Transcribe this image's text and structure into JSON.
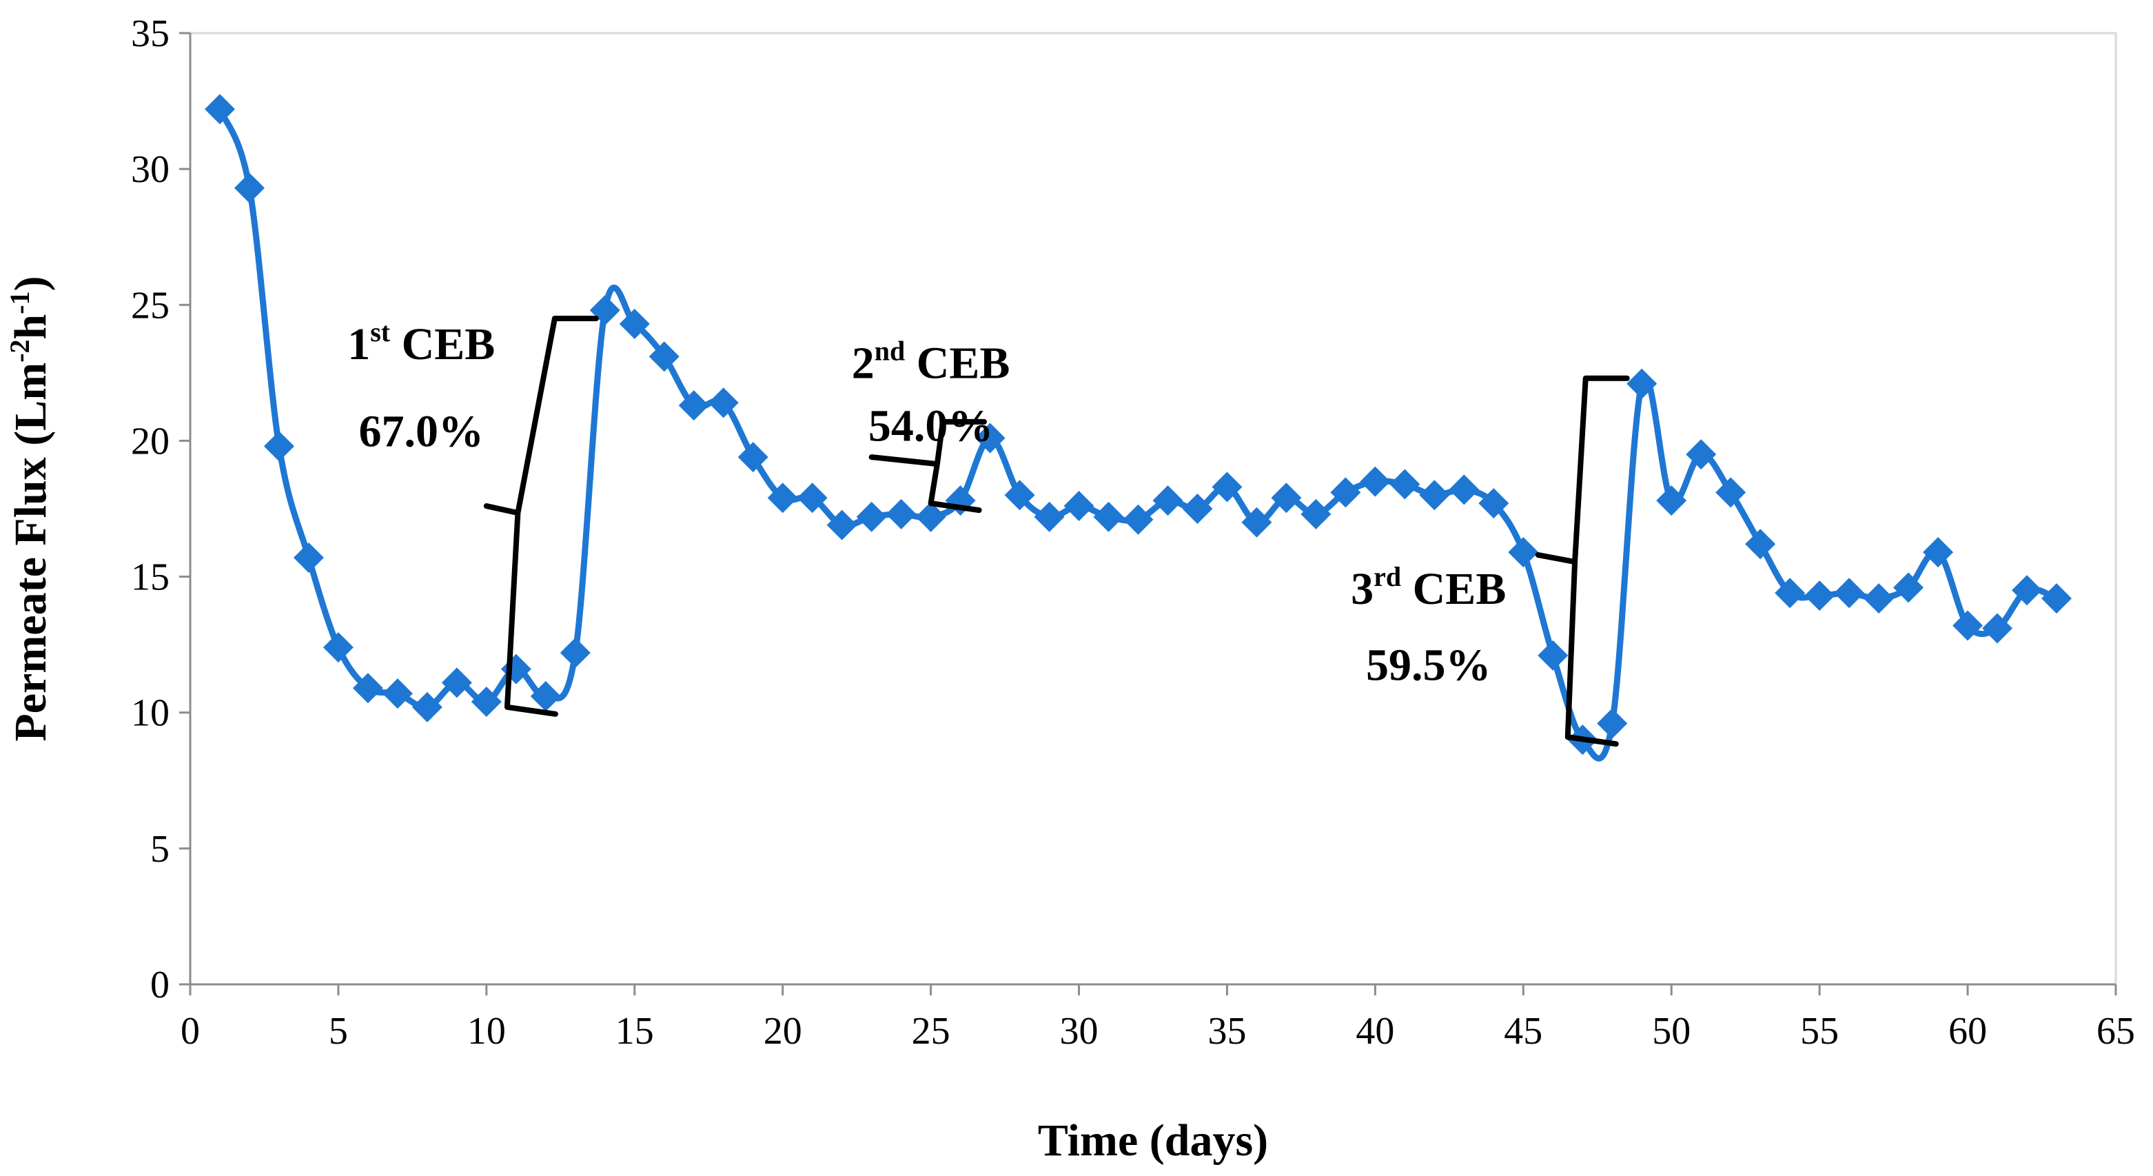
{
  "chart_data": {
    "type": "line",
    "xlabel": "Time (days)",
    "ylabel_parts": [
      "Permeate Flux (Lm",
      "-2",
      "h",
      "-1",
      ")"
    ],
    "xlim": [
      0,
      65
    ],
    "ylim": [
      0,
      35
    ],
    "xticks": [
      0,
      5,
      10,
      15,
      20,
      25,
      30,
      35,
      40,
      45,
      50,
      55,
      60,
      65
    ],
    "yticks": [
      0,
      5,
      10,
      15,
      20,
      25,
      30,
      35
    ],
    "grid": false,
    "line_color": "#1f77d4",
    "marker": "diamond",
    "smooth": true,
    "series": [
      {
        "x": [
          1,
          2,
          3,
          4,
          5,
          6,
          7,
          8,
          9,
          10,
          11,
          12,
          13,
          14,
          15,
          16,
          17,
          18,
          19,
          20,
          21,
          22,
          23,
          24,
          25,
          26,
          27,
          28,
          29,
          30,
          31,
          32,
          33,
          34,
          35,
          36,
          37,
          38,
          39,
          40,
          41,
          42,
          43,
          44,
          45,
          46,
          47,
          48,
          49,
          50,
          51,
          52,
          53,
          54,
          55,
          56,
          57,
          58,
          59,
          60,
          61,
          62,
          63
        ],
        "y": [
          32.2,
          29.3,
          19.8,
          15.7,
          12.4,
          10.9,
          10.7,
          10.2,
          11.1,
          10.4,
          11.6,
          10.6,
          12.2,
          24.8,
          24.3,
          23.1,
          21.3,
          21.4,
          19.4,
          17.9,
          17.9,
          16.9,
          17.2,
          17.3,
          17.2,
          17.8,
          20.1,
          18.0,
          17.2,
          17.6,
          17.2,
          17.1,
          17.8,
          17.5,
          18.3,
          17.0,
          17.9,
          17.3,
          18.1,
          18.5,
          18.4,
          18.0,
          18.2,
          17.7,
          15.9,
          12.1,
          9.0,
          9.6,
          22.1,
          17.8,
          19.5,
          18.1,
          16.2,
          14.4,
          14.3,
          14.4,
          14.2,
          14.6,
          15.9,
          13.2,
          13.1,
          14.5,
          14.2
        ]
      }
    ],
    "annotations": [
      {
        "label": "CEB",
        "ord_num": "1",
        "ord_suffix": "st",
        "value": "67.0%",
        "text_x": 7.8,
        "text_y_top": 23.0,
        "text_y_bottom": 19.8,
        "bracket": {
          "x_start": 10.7,
          "x_end": 13.7,
          "y_bottom": 10.2,
          "y_top": 24.5,
          "tip_x": 10.0,
          "tip_y": 17.6
        }
      },
      {
        "label": "CEB",
        "ord_num": "2",
        "ord_suffix": "nd",
        "value": "54.0%",
        "text_x": 25.0,
        "text_y_top": 22.3,
        "text_y_bottom": 20.0,
        "bracket": {
          "x_start": 25.0,
          "x_end": 26.8,
          "y_bottom": 17.7,
          "y_top": 20.7,
          "tip_x": 23.0,
          "tip_y": 19.4
        }
      },
      {
        "label": "CEB",
        "ord_num": "3",
        "ord_suffix": "rd",
        "value": "59.5%",
        "text_x": 41.8,
        "text_y_top": 14.0,
        "text_y_bottom": 11.2,
        "bracket": {
          "x_start": 46.5,
          "x_end": 48.5,
          "y_bottom": 9.1,
          "y_top": 22.3,
          "tip_x": 45.5,
          "tip_y": 15.8
        }
      }
    ]
  }
}
